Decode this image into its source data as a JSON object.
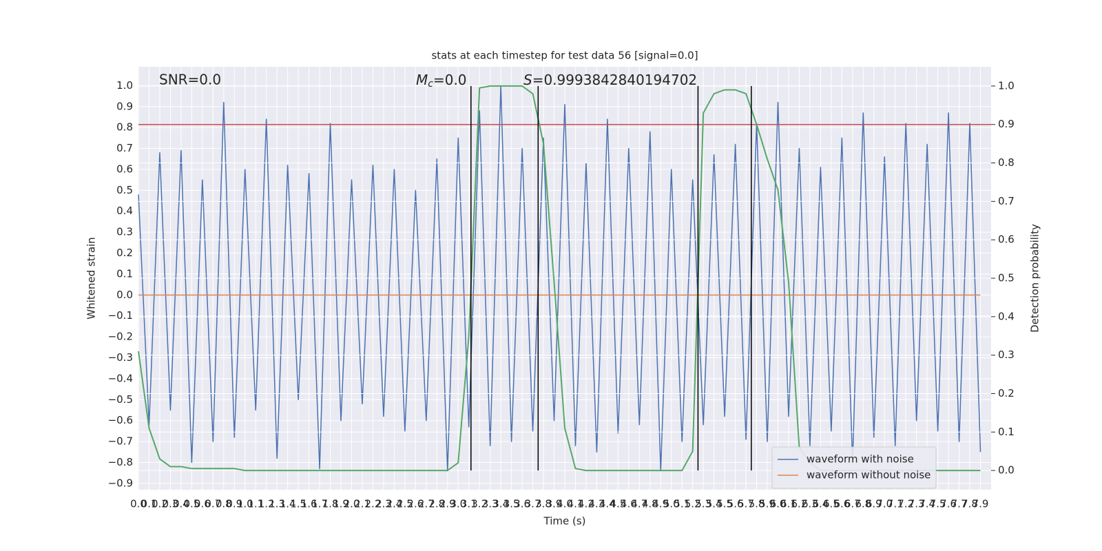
{
  "chart_data": {
    "type": "line",
    "title": "stats at each timestep for test data 56 [signal=0.0]",
    "xlabel": "Time (s)",
    "ylabel": "Whitened strain",
    "y2label": "Detection probability",
    "annotations": {
      "snr": "SNR=0.0",
      "mc_symbol": "M",
      "mc_subscript": "c",
      "mc_text": "=0.0",
      "s_symbol": "S",
      "s_text": "=0.9993842840194702"
    },
    "x": [
      0,
      0.1,
      0.2,
      0.3,
      0.4,
      0.5,
      0.6,
      0.7,
      0.8,
      0.9,
      1,
      1.1,
      1.2,
      1.3,
      1.4,
      1.5,
      1.6,
      1.7,
      1.8,
      1.9,
      2,
      2.1,
      2.2,
      2.3,
      2.4,
      2.5,
      2.6,
      2.7,
      2.8,
      2.9,
      3,
      3.1,
      3.2,
      3.3,
      3.4,
      3.5,
      3.6,
      3.7,
      3.8,
      3.9,
      4,
      4.1,
      4.2,
      4.3,
      4.4,
      4.5,
      4.6,
      4.7,
      4.8,
      4.9,
      5,
      5.1,
      5.2,
      5.3,
      5.4,
      5.5,
      5.6,
      5.7,
      5.8,
      5.9,
      6,
      6.1,
      6.2,
      6.3,
      6.4,
      6.5,
      6.6,
      6.7,
      6.8,
      6.9,
      7,
      7.1,
      7.2,
      7.3,
      7.4,
      7.5,
      7.6,
      7.7,
      7.8,
      7.9
    ],
    "series": [
      {
        "name": "waveform with noise",
        "color": "#4c72b0",
        "axis": "y",
        "values": [
          0.48,
          -0.62,
          0.68,
          -0.55,
          0.69,
          -0.8,
          0.55,
          -0.7,
          0.92,
          -0.68,
          0.6,
          -0.55,
          0.84,
          -0.78,
          0.62,
          -0.5,
          0.58,
          -0.83,
          0.82,
          -0.6,
          0.55,
          -0.52,
          0.62,
          -0.58,
          0.6,
          -0.65,
          0.5,
          -0.6,
          0.65,
          -0.84,
          0.75,
          -0.63,
          0.88,
          -0.72,
          1.0,
          -0.7,
          0.7,
          -0.65,
          0.75,
          -0.6,
          0.91,
          -0.72,
          0.63,
          -0.75,
          0.84,
          -0.66,
          0.7,
          -0.62,
          0.78,
          -0.84,
          0.6,
          -0.7,
          0.55,
          -0.62,
          0.67,
          -0.58,
          0.72,
          -0.69,
          0.82,
          -0.7,
          0.92,
          -0.58,
          0.7,
          -0.72,
          0.61,
          -0.65,
          0.75,
          -0.8,
          0.87,
          -0.68,
          0.66,
          -0.72,
          0.82,
          -0.6,
          0.72,
          -0.65,
          0.87,
          -0.7,
          0.82,
          -0.75
        ]
      },
      {
        "name": "waveform without noise",
        "color": "#dd8452",
        "axis": "y",
        "values": [
          0,
          0,
          0,
          0,
          0,
          0,
          0,
          0,
          0,
          0,
          0,
          0,
          0,
          0,
          0,
          0,
          0,
          0,
          0,
          0,
          0,
          0,
          0,
          0,
          0,
          0,
          0,
          0,
          0,
          0,
          0,
          0,
          0,
          0,
          0,
          0,
          0,
          0,
          0,
          0,
          0,
          0,
          0,
          0,
          0,
          0,
          0,
          0,
          0,
          0,
          0,
          0,
          0,
          0,
          0,
          0,
          0,
          0,
          0,
          0,
          0,
          0,
          0,
          0,
          0,
          0,
          0,
          0,
          0,
          0,
          0,
          0,
          0,
          0,
          0,
          0,
          0,
          0,
          0,
          0
        ]
      },
      {
        "color": "#55a868",
        "axis": "y2",
        "values": [
          0.31,
          0.11,
          0.03,
          0.01,
          0.01,
          0.005,
          0.005,
          0.005,
          0.005,
          0.005,
          0,
          0,
          0,
          0,
          0,
          0,
          0,
          0,
          0,
          0,
          0,
          0,
          0,
          0,
          0,
          0,
          0,
          0,
          0,
          0,
          0.02,
          0.35,
          0.995,
          1.0,
          1.0,
          1.0,
          1.0,
          0.98,
          0.85,
          0.49,
          0.11,
          0.005,
          0,
          0,
          0,
          0,
          0,
          0,
          0,
          0,
          0,
          0,
          0.05,
          0.93,
          0.98,
          0.99,
          0.99,
          0.98,
          0.9,
          0.81,
          0.73,
          0.49,
          0.06,
          0.02,
          0,
          0,
          0,
          0,
          0,
          0,
          0,
          0,
          0,
          0,
          0,
          0,
          0,
          0,
          0,
          0
        ]
      }
    ],
    "threshold": {
      "value": 0.9,
      "axis": "y2",
      "color": "#c44e52"
    },
    "vlines": {
      "x": [
        3.12,
        3.75,
        5.25,
        5.75
      ],
      "ymin": 0,
      "ymax": 1,
      "axis": "y2",
      "color": "#000000"
    },
    "xlim": [
      0,
      8.0
    ],
    "ylim": [
      -0.93,
      1.09
    ],
    "y2lim": [
      -0.05,
      1.05
    ],
    "xticks": [
      {
        "value": 0,
        "label": "0.0"
      },
      0.1,
      0.2,
      0.3,
      0.4,
      0.5,
      0.6,
      0.7,
      0.8,
      0.9,
      {
        "value": 1,
        "label": "1.0"
      },
      1.1,
      1.2,
      1.3,
      1.4,
      1.5,
      1.6,
      1.7,
      1.8,
      1.9,
      {
        "value": 2,
        "label": "2.0"
      },
      2.1,
      2.2,
      2.3,
      2.4,
      2.5,
      2.6,
      2.7,
      2.8,
      2.9,
      {
        "value": 3,
        "label": "3.0"
      },
      3.1,
      3.2,
      3.3,
      3.4,
      3.5,
      3.6,
      3.7,
      3.8,
      3.9,
      {
        "value": 4,
        "label": "4.0"
      },
      4.1,
      4.2,
      4.3,
      4.4,
      4.5,
      4.6,
      4.7,
      4.8,
      4.9,
      {
        "value": 5,
        "label": "5.0"
      },
      5.1,
      5.2,
      5.3,
      5.4,
      5.5,
      5.6,
      5.7,
      5.8,
      5.9,
      {
        "value": 6,
        "label": "6.0"
      },
      6.1,
      6.2,
      6.3,
      6.4,
      6.5,
      6.6,
      6.7,
      6.8,
      6.9,
      {
        "value": 7,
        "label": "7.0"
      },
      7.1,
      7.2,
      7.3,
      7.4,
      7.5,
      7.6,
      7.7,
      7.8,
      7.9
    ],
    "yticks": [
      {
        "value": -0.9,
        "label": "−0.9"
      },
      {
        "value": -0.8,
        "label": "−0.8"
      },
      {
        "value": -0.7,
        "label": "−0.7"
      },
      {
        "value": -0.6,
        "label": "−0.6"
      },
      {
        "value": -0.5,
        "label": "−0.5"
      },
      {
        "value": -0.4,
        "label": "−0.4"
      },
      {
        "value": -0.3,
        "label": "−0.3"
      },
      {
        "value": -0.2,
        "label": "−0.2"
      },
      {
        "value": -0.1,
        "label": "−0.1"
      },
      {
        "value": 0,
        "label": "0.0"
      },
      0.1,
      0.2,
      0.3,
      0.4,
      0.5,
      0.6,
      0.7,
      0.8,
      0.9,
      {
        "value": 1,
        "label": "1.0"
      }
    ],
    "y2ticks": [
      {
        "value": 0,
        "label": "0.0"
      },
      0.1,
      0.2,
      0.3,
      0.4,
      0.5,
      0.6,
      0.7,
      0.8,
      0.9,
      {
        "value": 1,
        "label": "1.0"
      }
    ],
    "grid": true,
    "legend": "lower right",
    "background": "#eaeaf2"
  }
}
